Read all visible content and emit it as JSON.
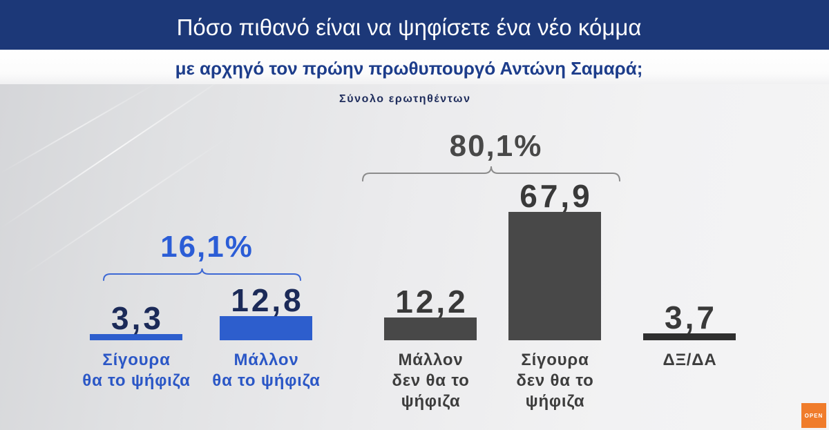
{
  "chart_data": {
    "type": "bar",
    "title": "Πόσο πιθανό είναι να ψηφίσετε ένα νέο κόμμα",
    "subtitle": "με αρχηγό τον πρώην πρωθυπουργό Αντώνη Σαμαρά;",
    "note": "Σύνολο ερωτηθέντων",
    "categories": [
      "Σίγουρα\nθα το ψήφιζα",
      "Μάλλον\nθα το ψήφιζα",
      "Μάλλον\nδεν θα το\nψήφιζα",
      "Σίγουρα\nδεν θα το\nψήφιζα",
      "ΔΞ/ΔΑ"
    ],
    "values": [
      3.3,
      12.8,
      12.2,
      67.9,
      3.7
    ],
    "value_labels": [
      "3,3",
      "12,8",
      "12,2",
      "67,9",
      "3,7"
    ],
    "bar_colors": [
      "#2d5ecd",
      "#2d5ecd",
      "#484848",
      "#484848",
      "#2f2f2f"
    ],
    "value_label_colors": [
      "#1b2a58",
      "#1b2a58",
      "#393939",
      "#393939",
      "#393939"
    ],
    "category_label_colors": [
      "#2b57c6",
      "#2b57c6",
      "#3d3d3d",
      "#3d3d3d",
      "#3d3d3d"
    ],
    "groups": [
      {
        "label": "16,1%",
        "members": [
          0,
          1
        ],
        "label_color": "#2b5dd6",
        "brace_color": "#3d68d4"
      },
      {
        "label": "80,1%",
        "members": [
          2,
          3
        ],
        "label_color": "#484848",
        "brace_color": "#8b8b8b"
      }
    ],
    "grid": false
  },
  "theme": {
    "header_bg": "#1c3878",
    "header_text": "#ffffff",
    "subtitle_color": "#1d3d8b",
    "note_color": "#1f2d5c"
  },
  "logo": {
    "text": "OPEN",
    "color": "#f07c2b"
  }
}
